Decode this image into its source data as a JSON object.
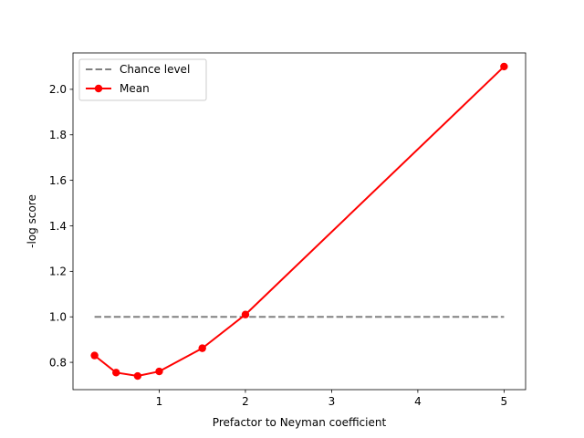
{
  "chart_data": {
    "type": "line",
    "xlabel": "Prefactor to Neyman coefficient",
    "ylabel": "-log score",
    "xlim": [
      0.0,
      5.25
    ],
    "ylim": [
      0.68,
      2.16
    ],
    "xticks": [
      1,
      2,
      3,
      4,
      5
    ],
    "yticks": [
      0.8,
      1.0,
      1.2,
      1.4,
      1.6,
      1.8,
      2.0
    ],
    "xtick_labels": [
      "1",
      "2",
      "3",
      "4",
      "5"
    ],
    "ytick_labels": [
      "0.8",
      "1.0",
      "1.2",
      "1.4",
      "1.6",
      "1.8",
      "2.0"
    ],
    "grid": false,
    "legend_position": "top-left",
    "series": [
      {
        "name": "Chance level",
        "style": "dashed",
        "color": "#808080",
        "x": [
          0.25,
          5.0
        ],
        "y": [
          1.0,
          1.0
        ]
      },
      {
        "name": "Mean",
        "style": "solid-with-markers",
        "color": "#ff0000",
        "x": [
          0.25,
          0.5,
          0.75,
          1.0,
          1.5,
          2.0,
          5.0
        ],
        "y": [
          0.83,
          0.755,
          0.74,
          0.76,
          0.862,
          1.01,
          2.1
        ]
      }
    ]
  }
}
